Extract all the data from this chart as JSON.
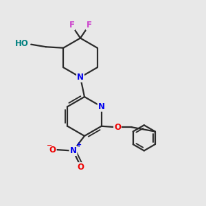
{
  "background_color": "#e8e8e8",
  "bond_color": "#2a2a2a",
  "bond_width": 1.6,
  "atom_colors": {
    "N": "#0000ee",
    "O": "#ee0000",
    "F": "#cc44cc",
    "HO": "#008080",
    "C": "#2a2a2a"
  },
  "font_size": 8.5,
  "figsize": [
    3.0,
    3.0
  ],
  "dpi": 100
}
